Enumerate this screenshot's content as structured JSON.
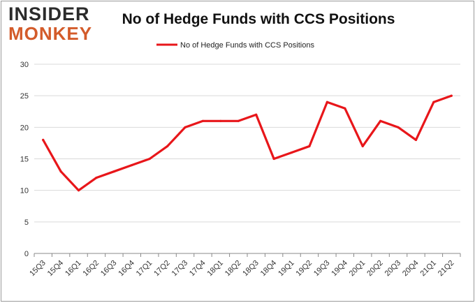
{
  "logo": {
    "line1": "INSIDER",
    "line2": "MONKEY"
  },
  "colors": {
    "series": "#e8161a",
    "grid": "#d9d9d9",
    "axis": "#888888",
    "logo_dark": "#2b2b2b",
    "logo_accent": "#d35b2a"
  },
  "chart_data": {
    "type": "line",
    "title": "No of Hedge Funds with CCS Positions",
    "xlabel": "",
    "ylabel": "",
    "ylim": [
      0,
      30
    ],
    "yticks": [
      0,
      5,
      10,
      15,
      20,
      25,
      30
    ],
    "grid": true,
    "legend_position": "top",
    "categories": [
      "15Q3",
      "15Q4",
      "16Q1",
      "16Q2",
      "16Q3",
      "16Q4",
      "17Q1",
      "17Q2",
      "17Q3",
      "17Q4",
      "18Q1",
      "18Q2",
      "18Q3",
      "18Q4",
      "19Q1",
      "19Q2",
      "19Q3",
      "19Q4",
      "20Q1",
      "20Q2",
      "20Q3",
      "20Q4",
      "21Q1",
      "21Q2"
    ],
    "series": [
      {
        "name": "No of Hedge Funds with CCS Positions",
        "values": [
          18,
          13,
          10,
          12,
          13,
          14,
          15,
          17,
          20,
          21,
          21,
          21,
          22,
          15,
          16,
          17,
          24,
          23,
          17,
          21,
          20,
          18,
          24,
          25
        ]
      }
    ]
  }
}
